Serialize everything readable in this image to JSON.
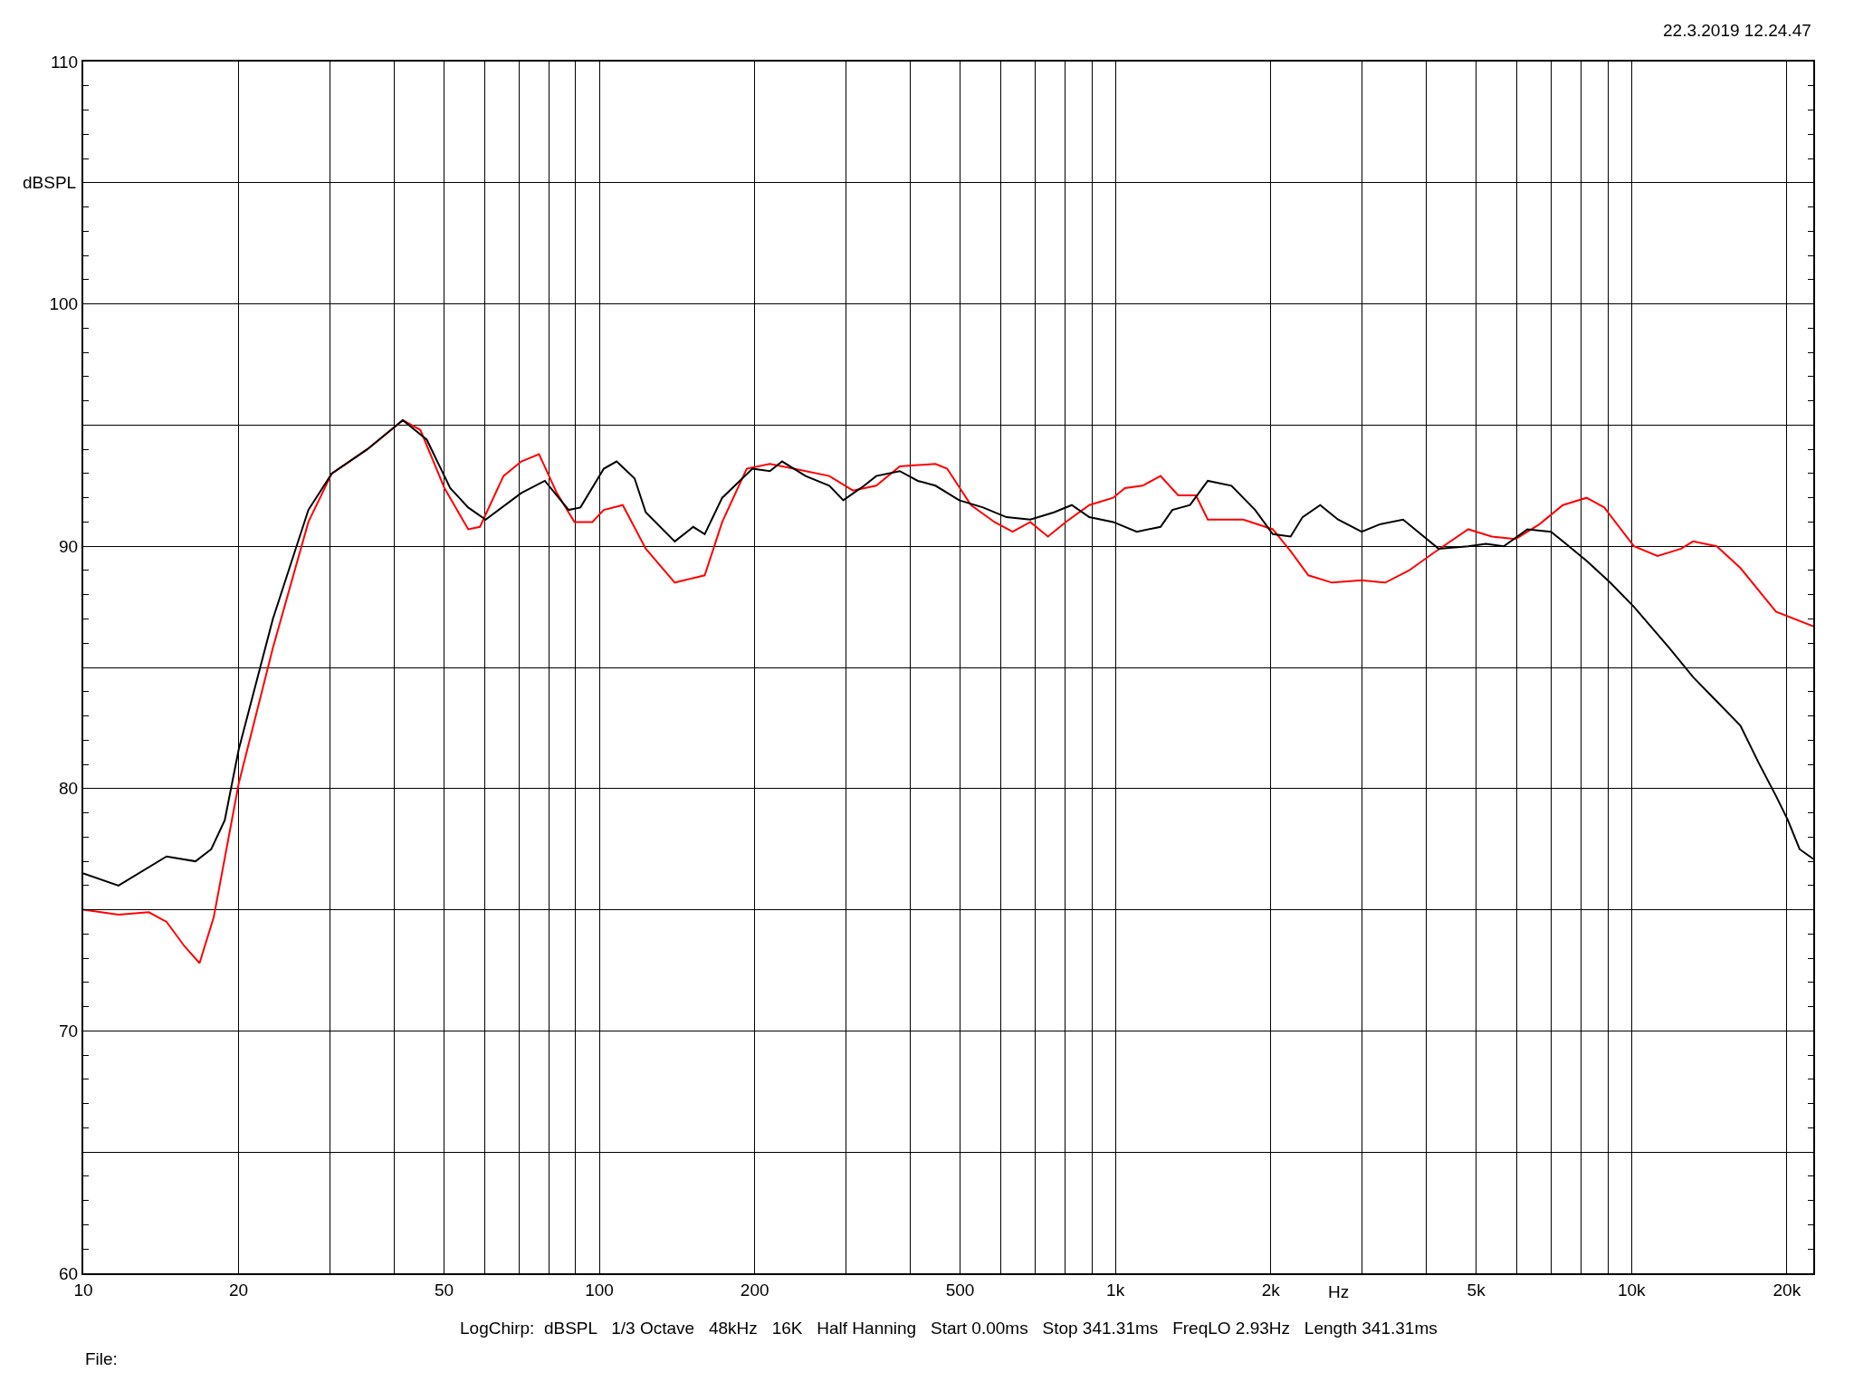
{
  "chart_data": {
    "type": "line",
    "xlabel": "Hz",
    "ylabel": "dBSPL",
    "log": "x",
    "grid": true,
    "marker": "none",
    "line_style": "solid",
    "xlim": [
      10,
      22500
    ],
    "ylim": [
      60,
      110
    ],
    "xticks": [
      10,
      {
        "value": 20,
        "label": "20"
      },
      {
        "value": 30,
        "label": null
      },
      {
        "value": 40,
        "label": null
      },
      50,
      {
        "value": 60,
        "label": null
      },
      {
        "value": 70,
        "label": null
      },
      {
        "value": 80,
        "label": null
      },
      {
        "value": 90,
        "label": null
      },
      100,
      200,
      {
        "value": 300,
        "label": null
      },
      {
        "value": 400,
        "label": null
      },
      500,
      {
        "value": 600,
        "label": null
      },
      {
        "value": 700,
        "label": null
      },
      {
        "value": 800,
        "label": null
      },
      {
        "value": 900,
        "label": null
      },
      {
        "value": 1000,
        "label": "1k"
      },
      {
        "value": 2000,
        "label": "2k"
      },
      {
        "value": 3000,
        "label": null
      },
      {
        "value": 4000,
        "label": null
      },
      {
        "value": 5000,
        "label": "5k"
      },
      {
        "value": 6000,
        "label": null
      },
      {
        "value": 7000,
        "label": null
      },
      {
        "value": 8000,
        "label": null
      },
      {
        "value": 9000,
        "label": null
      },
      {
        "value": 10000,
        "label": "10k"
      },
      {
        "value": 20000,
        "label": "20k"
      }
    ],
    "yticks": [
      60,
      {
        "value": 65,
        "label": null
      },
      70,
      {
        "value": 75,
        "label": null
      },
      80,
      {
        "value": 85,
        "label": null
      },
      90,
      {
        "value": 95,
        "label": null
      },
      100,
      {
        "value": 105,
        "label": null
      },
      110
    ],
    "annotations": [
      "22.3.2019 12.24.47",
      "LogChirp:  dBSPL   1/3 Octave   48kHz   16K   Half Hanning   Start 0.00ms   Stop 341.31ms   FreqLO 2.93Hz   Length 341.31ms",
      "File:"
    ],
    "series": [
      {
        "color": "#ff0000",
        "x": [
          10,
          11.7,
          13.4,
          14.5,
          15.7,
          16.8,
          17.9,
          20.0,
          23.3,
          27.3,
          30.3,
          35.5,
          41.6,
          45.0,
          50.1,
          55.7,
          58.7,
          65.2,
          70.6,
          76.4,
          82.7,
          89.5,
          96.9,
          102,
          111,
          123,
          140,
          160,
          173,
          193,
          214,
          238,
          279,
          310,
          344,
          382,
          448,
          472,
          525,
          583,
          632,
          684,
          740,
          801,
          890,
          990,
          1043,
          1129,
          1223,
          1323,
          1432,
          1510,
          1769,
          2018,
          2185,
          2365,
          2628,
          3000,
          3334,
          3705,
          4118,
          4826,
          5362,
          5961,
          6624,
          7362,
          8182,
          8855,
          10110,
          11230,
          12480,
          13160,
          14630,
          16260,
          19050,
          22500
        ],
        "values": [
          75.0,
          74.8,
          74.9,
          74.5,
          73.5,
          72.8,
          74.7,
          80.2,
          85.8,
          91.0,
          93.0,
          94.0,
          95.2,
          94.8,
          92.4,
          90.7,
          90.8,
          92.9,
          93.5,
          93.8,
          92.2,
          91.0,
          91.0,
          91.5,
          91.7,
          89.9,
          88.5,
          88.8,
          91.0,
          93.2,
          93.4,
          93.2,
          92.9,
          92.3,
          92.5,
          93.3,
          93.4,
          93.2,
          91.7,
          91.0,
          90.6,
          91.0,
          90.4,
          91.0,
          91.7,
          92.0,
          92.4,
          92.5,
          92.9,
          92.1,
          92.1,
          91.1,
          91.1,
          90.7,
          89.8,
          88.8,
          88.5,
          88.6,
          88.5,
          89.0,
          89.7,
          90.7,
          90.4,
          90.3,
          90.9,
          91.7,
          92.0,
          91.6,
          90.0,
          89.6,
          89.9,
          90.2,
          90.0,
          89.1,
          87.3,
          86.7
        ]
      },
      {
        "color": "#000000",
        "x": [
          10,
          11.7,
          14.5,
          16.5,
          17.7,
          18.8,
          20.0,
          23.3,
          27.3,
          30.3,
          35.5,
          41.6,
          46.3,
          51.4,
          55.7,
          60.2,
          70.6,
          78.4,
          87.2,
          91.9,
          102,
          108,
          117,
          123,
          140,
          152,
          160,
          173,
          198,
          214,
          226,
          251,
          279,
          297,
          326,
          344,
          382,
          414,
          448,
          498,
          554,
          615,
          684,
          760,
          823,
          890,
          990,
          1100,
          1223,
          1289,
          1395,
          1510,
          1678,
          1865,
          2018,
          2185,
          2304,
          2493,
          2700,
          3000,
          3248,
          3609,
          3905,
          4228,
          4826,
          5224,
          5654,
          6284,
          6983,
          7362,
          8182,
          9092,
          10110,
          11840,
          13160,
          14630,
          16260,
          17600,
          19050,
          20090,
          21170,
          22500
        ],
        "values": [
          76.5,
          76.0,
          77.2,
          77.0,
          77.5,
          78.7,
          81.6,
          87.0,
          91.5,
          93.0,
          94.0,
          95.2,
          94.4,
          92.4,
          91.6,
          91.1,
          92.2,
          92.7,
          91.5,
          91.6,
          93.2,
          93.5,
          92.8,
          91.4,
          90.2,
          90.8,
          90.5,
          92.0,
          93.2,
          93.1,
          93.5,
          92.9,
          92.5,
          91.9,
          92.5,
          92.9,
          93.1,
          92.7,
          92.5,
          91.9,
          91.6,
          91.2,
          91.1,
          91.4,
          91.7,
          91.2,
          91.0,
          90.6,
          90.8,
          91.5,
          91.7,
          92.7,
          92.5,
          91.5,
          90.5,
          90.4,
          91.2,
          91.7,
          91.1,
          90.6,
          90.9,
          91.1,
          90.5,
          89.9,
          90.0,
          90.1,
          90.0,
          90.7,
          90.6,
          90.2,
          89.4,
          88.5,
          87.5,
          85.8,
          84.6,
          83.6,
          82.6,
          81.1,
          79.7,
          78.7,
          77.5,
          77.1
        ]
      }
    ]
  }
}
